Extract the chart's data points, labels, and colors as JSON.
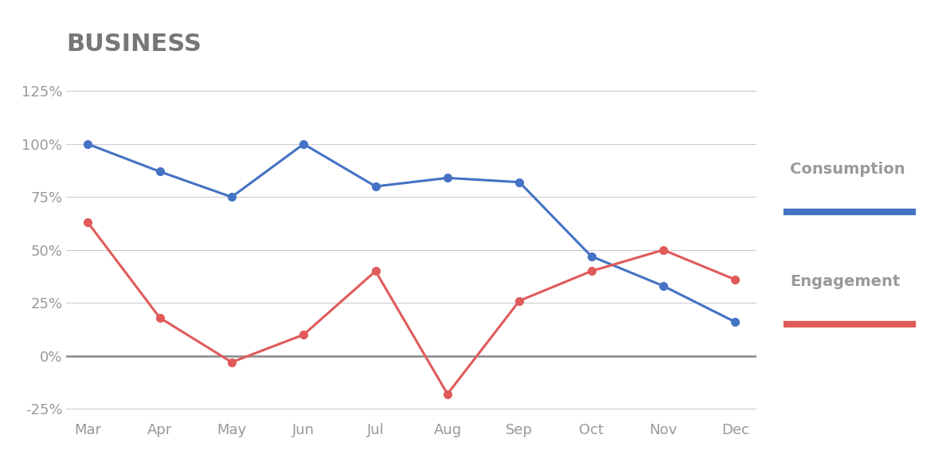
{
  "title": "BUSINESS",
  "months": [
    "Mar",
    "Apr",
    "May",
    "Jun",
    "Jul",
    "Aug",
    "Sep",
    "Oct",
    "Nov",
    "Dec"
  ],
  "consumption": [
    100,
    87,
    75,
    100,
    80,
    84,
    82,
    47,
    33,
    16
  ],
  "engagement": [
    63,
    18,
    -3,
    10,
    40,
    -18,
    26,
    40,
    50,
    36
  ],
  "consumption_color": "#4472C4",
  "engagement_color": "#E05A5A",
  "background_color": "#ffffff",
  "ylim": [
    -30,
    135
  ],
  "yticks": [
    -25,
    0,
    25,
    50,
    75,
    100,
    125
  ],
  "title_fontsize": 22,
  "title_color": "#777777",
  "tick_color": "#999999",
  "grid_color": "#cccccc",
  "legend_consumption": "Consumption",
  "legend_engagement": "Engagement",
  "zero_line_color": "#888888",
  "marker_size": 7
}
